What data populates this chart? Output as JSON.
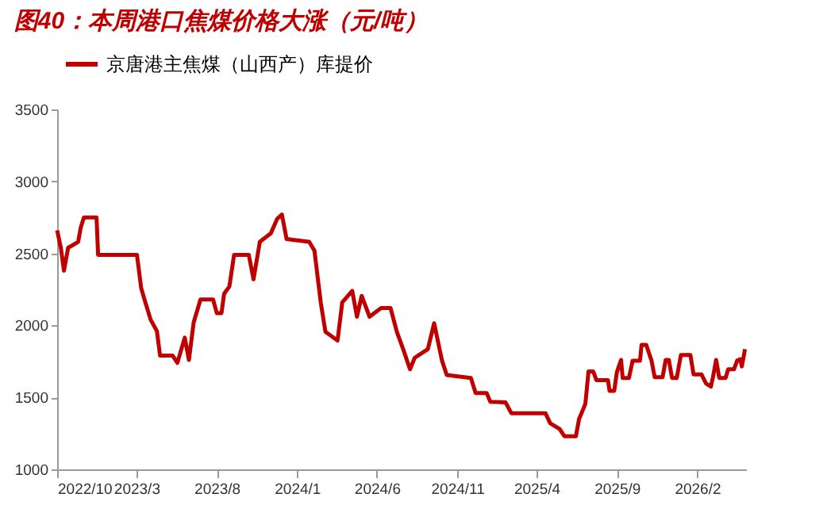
{
  "chart_data": {
    "type": "line",
    "title": "图40：本周港口焦煤价格大涨（元/吨）",
    "x": [
      "2022-10-01",
      "2022-10-08",
      "2022-10-14",
      "2022-10-22",
      "2022-11-01",
      "2022-11-10",
      "2022-11-15",
      "2022-11-21",
      "2022-12-15",
      "2022-12-18",
      "2023-03-02",
      "2023-03-10",
      "2023-03-18",
      "2023-03-28",
      "2023-04-09",
      "2023-04-15",
      "2023-05-09",
      "2023-05-18",
      "2023-06-01",
      "2023-06-09",
      "2023-06-18",
      "2023-07-01",
      "2023-07-25",
      "2023-08-01",
      "2023-08-10",
      "2023-08-15",
      "2023-08-25",
      "2023-09-03",
      "2023-10-01",
      "2023-10-10",
      "2023-10-22",
      "2023-11-12",
      "2023-11-24",
      "2023-12-03",
      "2023-12-12",
      "2024-01-24",
      "2024-02-03",
      "2024-02-15",
      "2024-02-24",
      "2024-03-18",
      "2024-03-27",
      "2024-04-15",
      "2024-04-24",
      "2024-05-03",
      "2024-05-18",
      "2024-06-09",
      "2024-06-27",
      "2024-07-09",
      "2024-07-21",
      "2024-08-03",
      "2024-08-12",
      "2024-09-06",
      "2024-09-18",
      "2024-10-03",
      "2024-10-12",
      "2024-11-27",
      "2024-12-06",
      "2024-12-27",
      "2025-01-03",
      "2025-02-01",
      "2025-02-12",
      "2025-04-18",
      "2025-04-27",
      "2025-05-15",
      "2025-05-24",
      "2025-06-15",
      "2025-06-21",
      "2025-07-03",
      "2025-07-09",
      "2025-07-18",
      "2025-07-24",
      "2025-08-15",
      "2025-08-18",
      "2025-08-27",
      "2025-09-01",
      "2025-09-09",
      "2025-09-12",
      "2025-09-24",
      "2025-10-01",
      "2025-10-15",
      "2025-10-18",
      "2025-10-27",
      "2025-11-06",
      "2025-11-12",
      "2025-11-27",
      "2025-12-03",
      "2025-12-09",
      "2025-12-15",
      "2025-12-24",
      "2026-01-01",
      "2026-01-19",
      "2026-01-25",
      "2026-02-09",
      "2026-02-18",
      "2026-02-27",
      "2026-03-03",
      "2026-03-09",
      "2026-03-15",
      "2026-03-27",
      "2026-04-01",
      "2026-04-12",
      "2026-04-18",
      "2026-04-24",
      "2026-04-27",
      "2026-05-03"
    ],
    "series": [
      {
        "name": "京唐港主焦煤（山西产）库提价",
        "color": "#c00000",
        "values": [
          2660,
          2540,
          2380,
          2540,
          2560,
          2580,
          2680,
          2750,
          2750,
          2490,
          2490,
          2260,
          2160,
          2040,
          1960,
          1790,
          1790,
          1740,
          1915,
          1760,
          2020,
          2180,
          2180,
          2085,
          2085,
          2220,
          2270,
          2490,
          2490,
          2320,
          2580,
          2640,
          2740,
          2770,
          2600,
          2580,
          2520,
          2160,
          1955,
          1895,
          2160,
          2240,
          2060,
          2205,
          2060,
          2120,
          2120,
          1955,
          1835,
          1695,
          1775,
          1835,
          2015,
          1755,
          1655,
          1635,
          1530,
          1530,
          1470,
          1465,
          1390,
          1390,
          1320,
          1280,
          1230,
          1230,
          1350,
          1455,
          1680,
          1680,
          1620,
          1620,
          1545,
          1545,
          1675,
          1760,
          1635,
          1635,
          1755,
          1755,
          1865,
          1865,
          1755,
          1640,
          1640,
          1760,
          1760,
          1635,
          1635,
          1795,
          1795,
          1660,
          1660,
          1595,
          1575,
          1640,
          1760,
          1635,
          1635,
          1695,
          1695,
          1755,
          1765,
          1715,
          1835
        ]
      }
    ],
    "xlim": [
      "2022-10-01",
      "2026-05-05"
    ],
    "xticks": [
      {
        "value": "2022-10-01",
        "label": "2022/10"
      },
      {
        "value": "2023-03-01",
        "label": "2023/3"
      },
      {
        "value": "2023-08-01",
        "label": "2023/8"
      },
      {
        "value": "2024-01-01",
        "label": "2024/1"
      },
      {
        "value": "2024-06-01",
        "label": "2024/6"
      },
      {
        "value": "2024-11-01",
        "label": "2024/11"
      },
      {
        "value": "2025-04-01",
        "label": "2025/4"
      },
      {
        "value": "2025-09-01",
        "label": "2025/9"
      },
      {
        "value": "2026-02-01",
        "label": "2026/2"
      }
    ],
    "ylim": [
      1000,
      3500
    ],
    "yticks": [
      1000,
      1500,
      2000,
      2500,
      3000,
      3500
    ],
    "grid": false,
    "legend": "top",
    "marker": "none",
    "line_style": "solid"
  }
}
